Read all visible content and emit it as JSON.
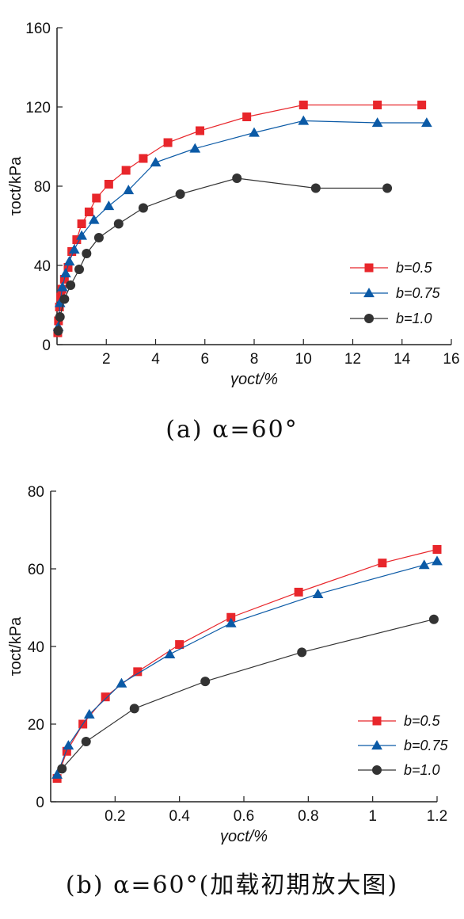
{
  "colors": {
    "b05": "#e8262b",
    "b075": "#0b5aa6",
    "b10": "#333333",
    "axis": "#222222"
  },
  "chart_data": [
    {
      "type": "line",
      "caption": "(a) α=60°",
      "xlabel": "γoct/%",
      "ylabel": "τoct/kPa",
      "xlim": [
        0,
        16
      ],
      "ylim": [
        0,
        160
      ],
      "xticks": [
        2,
        4,
        6,
        8,
        10,
        12,
        14,
        16
      ],
      "yticks": [
        0,
        40,
        80,
        120,
        160
      ],
      "legend_position": "center-right",
      "series": [
        {
          "name": "b=0.5",
          "marker": "square",
          "color": "#e8262b",
          "x": [
            0.03,
            0.06,
            0.1,
            0.15,
            0.2,
            0.3,
            0.45,
            0.6,
            0.8,
            1.0,
            1.3,
            1.6,
            2.1,
            2.8,
            3.5,
            4.5,
            5.8,
            7.7,
            10.0,
            13.0,
            14.8
          ],
          "y": [
            6,
            12,
            19,
            24,
            28,
            33,
            39,
            47,
            53,
            61,
            67,
            74,
            81,
            88,
            94,
            102,
            108,
            115,
            121,
            121,
            121
          ]
        },
        {
          "name": "b=0.75",
          "marker": "triangle",
          "color": "#0b5aa6",
          "x": [
            0.05,
            0.12,
            0.22,
            0.35,
            0.5,
            0.7,
            1.0,
            1.5,
            2.1,
            2.9,
            4.0,
            5.6,
            8.0,
            10.0,
            13.0,
            15.0
          ],
          "y": [
            9,
            21,
            29,
            36,
            42,
            48,
            55,
            63,
            70,
            78,
            92,
            99,
            107,
            113,
            112,
            112
          ]
        },
        {
          "name": "b=1.0",
          "marker": "circle",
          "color": "#333333",
          "x": [
            0.05,
            0.12,
            0.3,
            0.55,
            0.9,
            1.2,
            1.7,
            2.5,
            3.5,
            5.0,
            7.3,
            10.5,
            13.4
          ],
          "y": [
            7,
            14,
            23,
            30,
            38,
            46,
            54,
            61,
            69,
            76,
            84,
            79,
            79
          ]
        }
      ]
    },
    {
      "type": "line",
      "caption": "(b) α=60°(加载初期放大图)",
      "xlabel": "γoct/%",
      "ylabel": "τoct/kPa",
      "xlim": [
        0,
        1.2
      ],
      "ylim": [
        0,
        80
      ],
      "xticks": [
        0.2,
        0.4,
        0.6,
        0.8,
        1.0,
        1.2
      ],
      "yticks": [
        0,
        20,
        40,
        60,
        80
      ],
      "legend_position": "bottom-right",
      "series": [
        {
          "name": "b=0.5",
          "marker": "square",
          "color": "#e8262b",
          "x": [
            0.02,
            0.05,
            0.1,
            0.17,
            0.27,
            0.4,
            0.56,
            0.77,
            1.03,
            1.2
          ],
          "y": [
            6,
            13,
            20,
            27,
            33.5,
            40.5,
            47.5,
            54,
            61.5,
            65
          ]
        },
        {
          "name": "b=0.75",
          "marker": "triangle",
          "color": "#0b5aa6",
          "x": [
            0.02,
            0.055,
            0.12,
            0.22,
            0.37,
            0.56,
            0.83,
            1.16,
            1.2
          ],
          "y": [
            7,
            14.5,
            22.5,
            30.5,
            38,
            46,
            53.5,
            61,
            62
          ]
        },
        {
          "name": "b=1.0",
          "marker": "circle",
          "color": "#333333",
          "x": [
            0.035,
            0.11,
            0.26,
            0.48,
            0.78,
            1.19
          ],
          "y": [
            8.5,
            15.5,
            24,
            31,
            38.5,
            47
          ]
        }
      ]
    }
  ]
}
